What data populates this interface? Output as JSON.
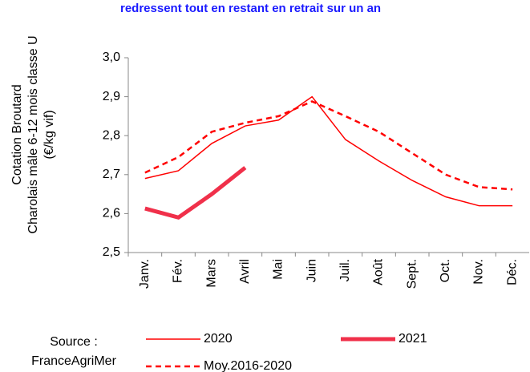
{
  "chart_data": {
    "type": "line",
    "title": "redressent tout en restant en retrait sur un an",
    "ylabel": [
      "Cotation Broutard",
      "Charolais mâle 6-12 mois classe U",
      "(€/kg vif)"
    ],
    "source": [
      "Source :",
      "FranceAgriMer"
    ],
    "categories": [
      "Janv.",
      "Fév.",
      "Mars",
      "Avril",
      "Mai",
      "Juin",
      "Juil.",
      "Août",
      "Sept.",
      "Oct.",
      "Nov.",
      "Déc."
    ],
    "ylim": [
      2.5,
      3.0
    ],
    "yticks": [
      {
        "value": 2.5,
        "label": "2,5"
      },
      {
        "value": 2.6,
        "label": "2,6"
      },
      {
        "value": 2.7,
        "label": "2,7"
      },
      {
        "value": 2.8,
        "label": "2,8"
      },
      {
        "value": 2.9,
        "label": "2,9"
      },
      {
        "value": 3.0,
        "label": "3,0"
      }
    ],
    "grid": false,
    "series": [
      {
        "name": "2020",
        "color": "#ff0000",
        "width": 1.5,
        "dash": "none",
        "values": [
          2.69,
          2.71,
          2.78,
          2.825,
          2.84,
          2.9,
          2.79,
          2.735,
          2.685,
          2.643,
          2.62,
          2.62
        ]
      },
      {
        "name": "2021",
        "color": "#f0304a",
        "width": 5,
        "dash": "none",
        "values": [
          2.613,
          2.59,
          2.65,
          2.718,
          null,
          null,
          null,
          null,
          null,
          null,
          null,
          null
        ]
      },
      {
        "name": "Moy.2016-2020",
        "color": "#ff0000",
        "width": 2.5,
        "dash": "7,5",
        "values": [
          2.705,
          2.745,
          2.81,
          2.833,
          2.85,
          2.888,
          2.85,
          2.81,
          2.755,
          2.7,
          2.668,
          2.662
        ]
      }
    ]
  }
}
